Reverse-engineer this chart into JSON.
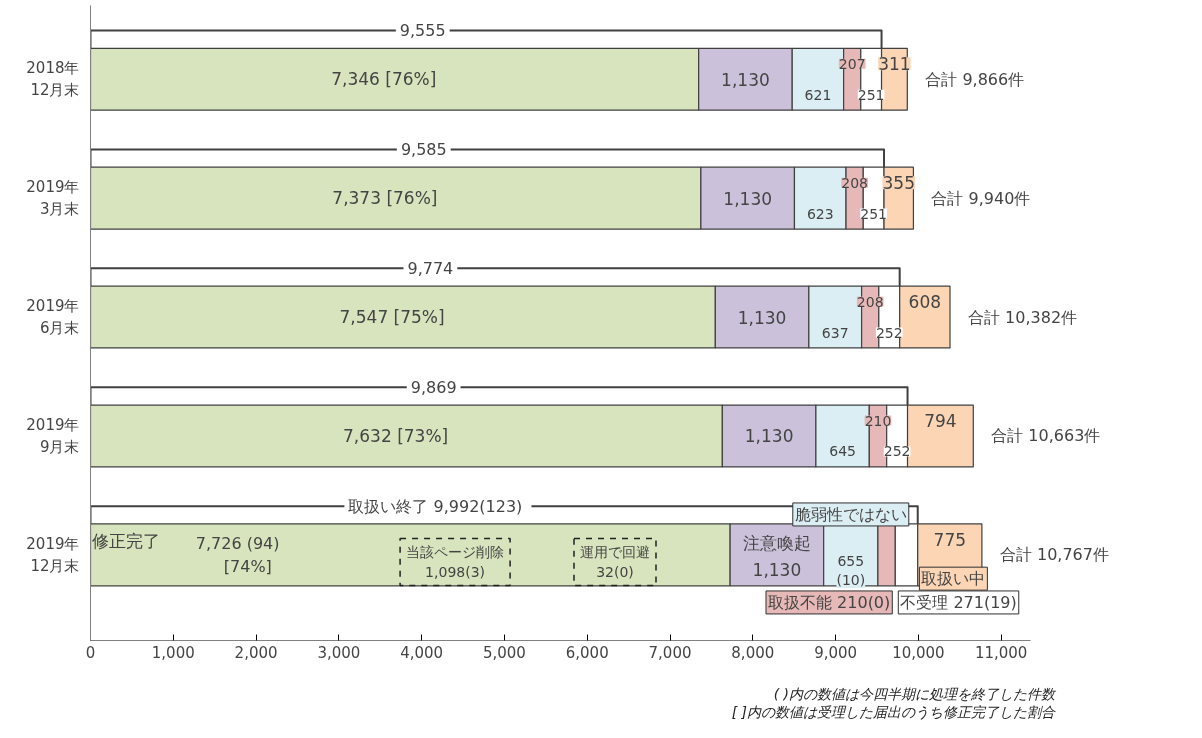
{
  "chart_data": {
    "type": "bar",
    "orientation": "horizontal",
    "stacked": true,
    "categories": [
      "2018年\n12月末",
      "2019年\n3月末",
      "2019年\n6月末",
      "2019年\n9月末",
      "2019年\n12月末"
    ],
    "series": [
      {
        "name": "修正完了",
        "color": "#d7e4bd",
        "values": [
          7346,
          7373,
          7547,
          7632,
          7726
        ],
        "value_labels": [
          "7,346     [76%]",
          "7,373     [76%]",
          "7,547     [75%]",
          "7,632     [73%]",
          "7,726     (94)\n[74%]"
        ]
      },
      {
        "name": "注意喚起",
        "color": "#ccc1da",
        "values": [
          1130,
          1130,
          1130,
          1130,
          1130
        ],
        "value_labels": [
          "1,130",
          "1,130",
          "1,130",
          "1,130",
          "1,130"
        ]
      },
      {
        "name": "脆弱性ではない",
        "color": "#dbeef4",
        "values": [
          621,
          623,
          637,
          645,
          655
        ],
        "value_labels": [
          "621",
          "623",
          "637",
          "645",
          "655\n(10)"
        ]
      },
      {
        "name": "取扱不能",
        "color": "#e6b9b8",
        "values": [
          207,
          208,
          208,
          210,
          210
        ],
        "value_labels": [
          "207",
          "208",
          "208",
          "210",
          "210(0)"
        ]
      },
      {
        "name": "不受理",
        "color": "#ffffff",
        "values": [
          251,
          251,
          252,
          252,
          271
        ],
        "value_labels": [
          "251",
          "251",
          "252",
          "252",
          "271(19)"
        ]
      },
      {
        "name": "取扱い中",
        "color": "#fcd5b5",
        "values": [
          311,
          355,
          608,
          794,
          775
        ],
        "value_labels": [
          "311",
          "355",
          "608",
          "794",
          "775"
        ]
      }
    ],
    "totals": [
      "合計 9,866件",
      "合計 9,940件",
      "合計 10,382件",
      "合計 10,663件",
      "合計 10,767件"
    ],
    "xlim": [
      0,
      11350
    ],
    "xticks": [
      0,
      {
        "value": 1000,
        "label": "1,000"
      },
      {
        "value": 2000,
        "label": "2,000"
      },
      {
        "value": 3000,
        "label": "3,000"
      },
      {
        "value": 4000,
        "label": "4,000"
      },
      {
        "value": 5000,
        "label": "5,000"
      },
      {
        "value": 6000,
        "label": "6,000"
      },
      {
        "value": 7000,
        "label": "7,000"
      },
      {
        "value": 8000,
        "label": "8,000"
      },
      {
        "value": 9000,
        "label": "9,000"
      },
      {
        "value": 10000,
        "label": "10,000"
      },
      {
        "value": 11000,
        "label": "11,000"
      }
    ],
    "annotations": [
      "9,555",
      "9,585",
      "9,774",
      "9,869",
      "取扱い終了  9,992(123)",
      "当該ページ削除\n1,098(3)",
      "運用で回避\n32(0)",
      "( )内の数値は今四半期に処理を終了した件数",
      "[ ]内の数値は受理した届出のうち修正完了した割合"
    ]
  }
}
